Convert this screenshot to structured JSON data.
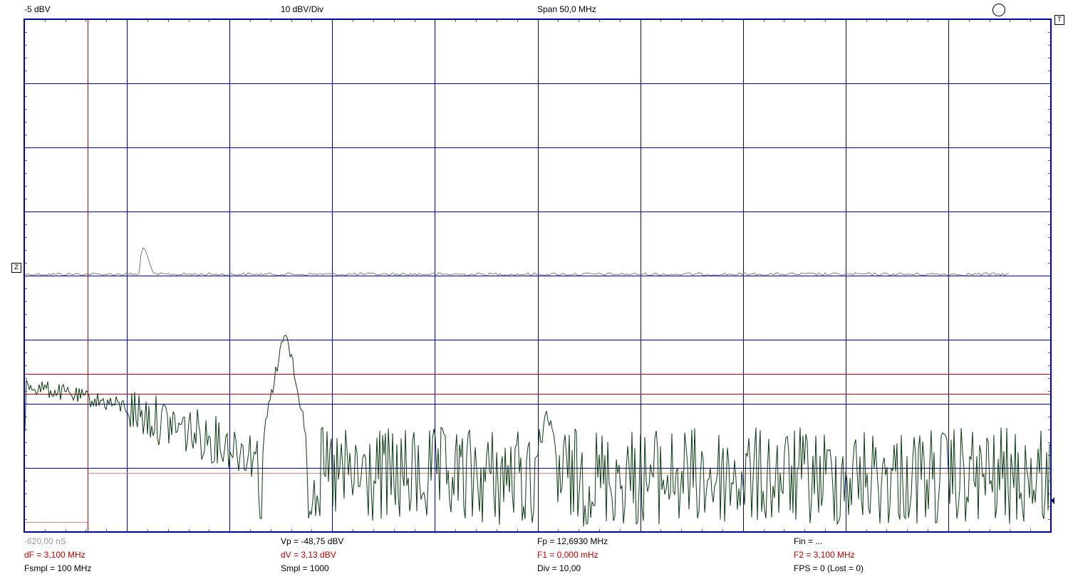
{
  "top_bar": {
    "ref_level": "-5 dBV",
    "scale": "10 dBV/Div",
    "span": "Span 50,0 MHz"
  },
  "markers": {
    "trigger": "T",
    "zero": "Z"
  },
  "bottom": {
    "row1": {
      "time": "-620,00 nS",
      "vp": "Vp = -48,75 dBV",
      "fp": "Fp = 12,6930 MHz",
      "fin": "Fin = ..."
    },
    "row2": {
      "df": "dF = 3,100 MHz",
      "dv": "dV = 3,13 dBV",
      "f1": "F1 = 0,000 mHz",
      "f2": "F2 = 3,100 MHz"
    },
    "row3": {
      "fsmpl": "Fsmpl = 100 MHz",
      "smpl": "Smpl = 1000",
      "div": "Div = 10,00",
      "fps": "FPS = 0 (Lost = 0)"
    }
  },
  "colors": {
    "grid": "#0000a0",
    "trace": "#0b3a12",
    "reference_trace": "#7a7a7a",
    "cursor": "#c00000",
    "cursor_light": "#e08080"
  },
  "icons": {
    "run_indicator": "circle-icon"
  }
}
